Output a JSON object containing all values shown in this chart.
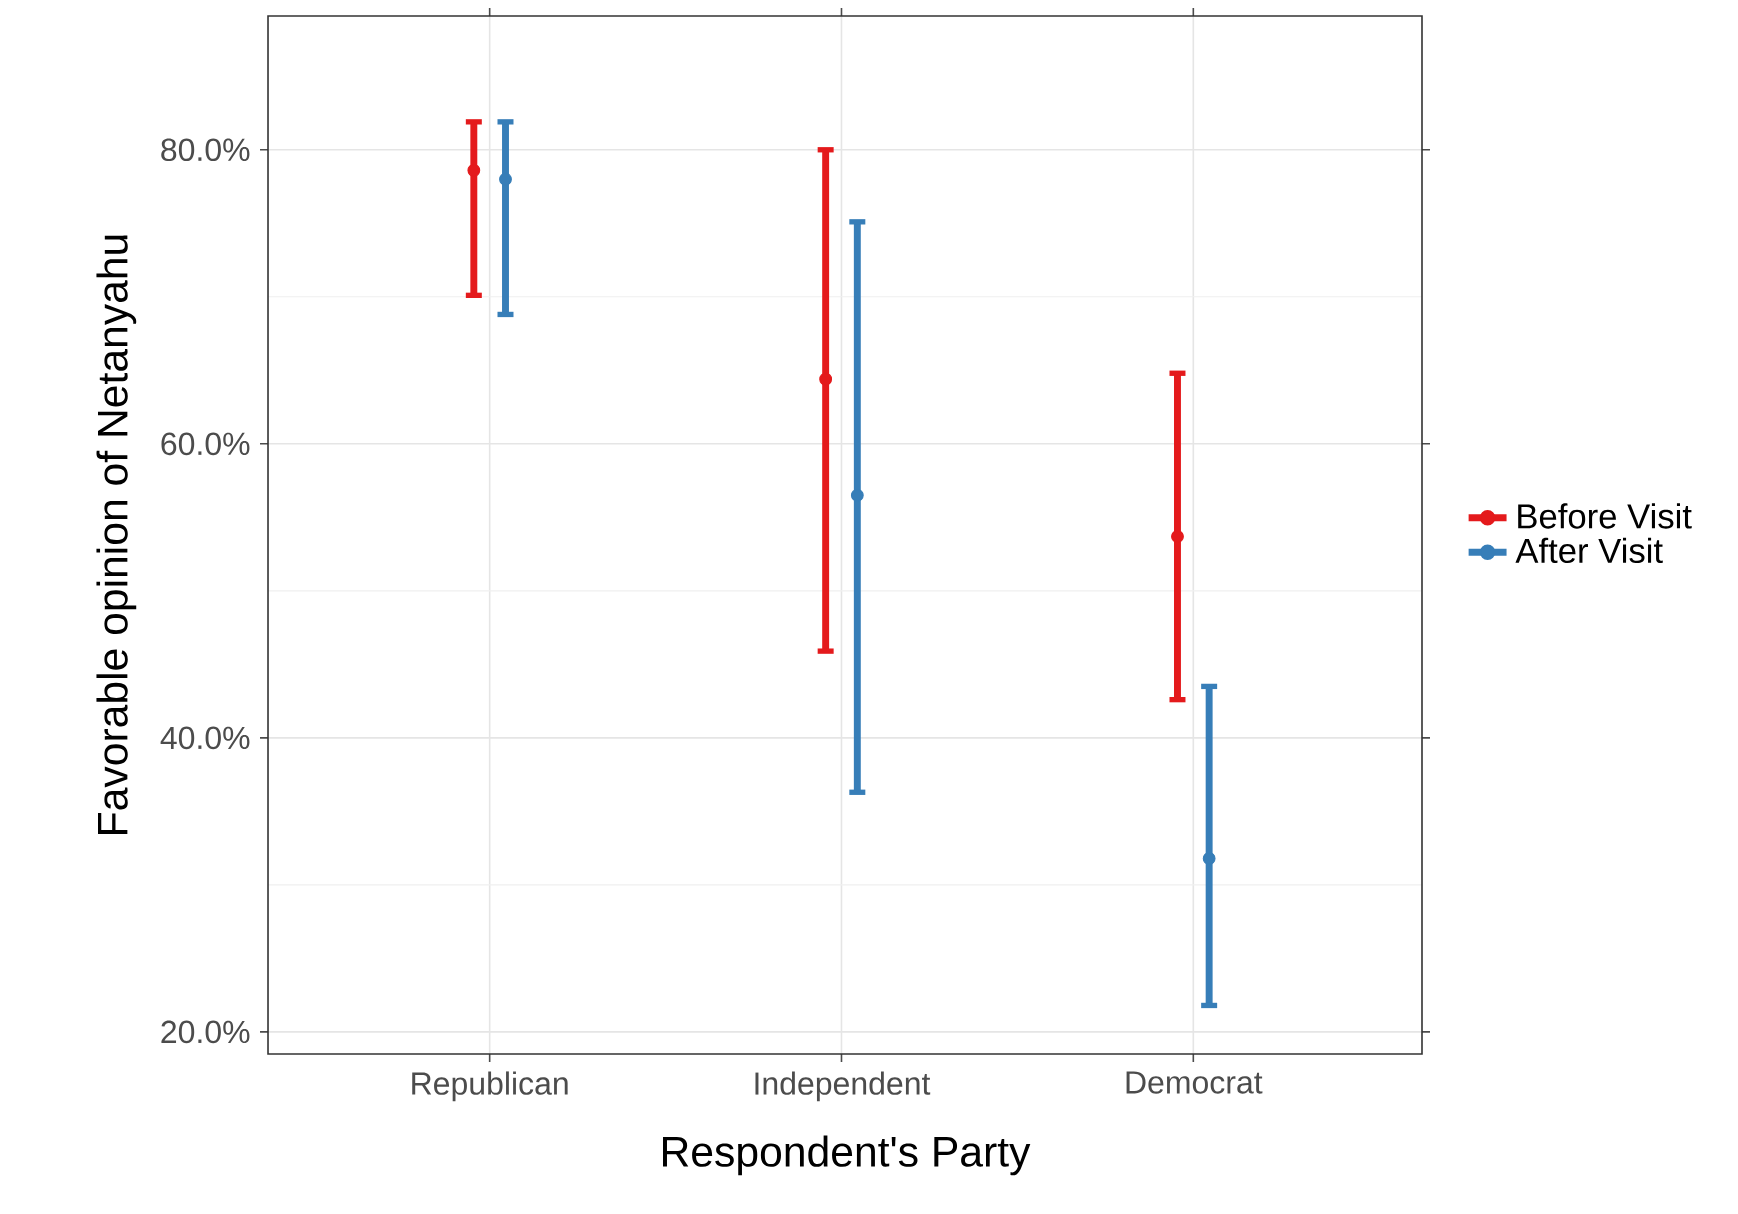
{
  "chart_data": {
    "type": "scatter",
    "xlabel": "Respondent's Party",
    "ylabel": "Favorable opinion of Netanyahu",
    "categories": [
      "Republican",
      "Independent",
      "Democrat"
    ],
    "series": [
      {
        "name": "Before Visit",
        "color": "#e41a1c",
        "values": [
          78.6,
          64.4,
          53.7
        ],
        "errors": [
          [
            70.1,
            81.9
          ],
          [
            45.9,
            80.0
          ],
          [
            42.6,
            64.8
          ]
        ]
      },
      {
        "name": "After Visit",
        "color": "#377eb8",
        "values": [
          78.0,
          56.5,
          31.8
        ],
        "errors": [
          [
            68.8,
            81.9
          ],
          [
            36.3,
            75.1
          ],
          [
            21.8,
            43.5
          ]
        ]
      }
    ],
    "ylim": [
      18.5,
      89.1
    ],
    "yticks": [
      {
        "value": 20,
        "label": "20.0%"
      },
      {
        "value": 40,
        "label": "40.0%"
      },
      {
        "value": 60,
        "label": "60.0%"
      },
      {
        "value": 80,
        "label": "80.0%"
      }
    ],
    "grid": true,
    "legend": "right",
    "marker": "circle"
  }
}
